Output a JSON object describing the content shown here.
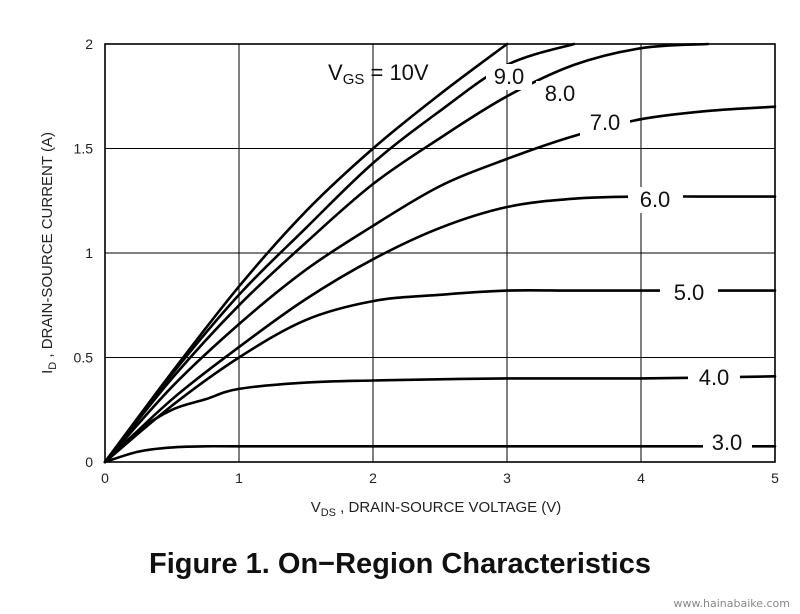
{
  "caption": "Figure 1. On−Region Characteristics",
  "watermark": "www.hainabaike.com",
  "chart_data": {
    "type": "line",
    "title": "",
    "xlabel": "V_DS , DRAIN-SOURCE VOLTAGE (V)",
    "ylabel": "I_D , DRAIN-SOURCE CURRENT (A)",
    "xlim": [
      0,
      5
    ],
    "ylim": [
      0,
      2
    ],
    "xticks": [
      "0",
      "1",
      "2",
      "3",
      "4",
      "5"
    ],
    "yticks": [
      "0",
      "0.5",
      "1",
      "1.5",
      "2"
    ],
    "grid": true,
    "color": "#000000",
    "series": [
      {
        "name": "VGS = 10V",
        "label": "VGS = 10V",
        "x": [
          0,
          0.5,
          1,
          1.5,
          2,
          2.5,
          3
        ],
        "y": [
          0,
          0.43,
          0.84,
          1.2,
          1.5,
          1.76,
          2.0
        ]
      },
      {
        "name": "9.0",
        "label": "9.0",
        "x": [
          0,
          0.5,
          1,
          1.5,
          2,
          2.5,
          3,
          3.5
        ],
        "y": [
          0,
          0.42,
          0.8,
          1.12,
          1.43,
          1.68,
          1.9,
          2.0
        ]
      },
      {
        "name": "8.0",
        "label": "8.0",
        "x": [
          0,
          0.5,
          1,
          1.5,
          2,
          2.5,
          3,
          3.5,
          4,
          4.5
        ],
        "y": [
          0,
          0.4,
          0.75,
          1.05,
          1.33,
          1.55,
          1.75,
          1.9,
          1.98,
          2.0
        ]
      },
      {
        "name": "7.0",
        "label": "7.0",
        "x": [
          0,
          0.5,
          1,
          1.5,
          2,
          2.5,
          3,
          3.5,
          4,
          4.5,
          5
        ],
        "y": [
          0,
          0.36,
          0.66,
          0.92,
          1.13,
          1.32,
          1.45,
          1.56,
          1.64,
          1.68,
          1.7
        ]
      },
      {
        "name": "6.0",
        "label": "6.0",
        "x": [
          0,
          0.5,
          1,
          1.5,
          2,
          2.5,
          3,
          3.5,
          4,
          4.5,
          5
        ],
        "y": [
          0,
          0.3,
          0.55,
          0.78,
          0.97,
          1.12,
          1.22,
          1.26,
          1.27,
          1.27,
          1.27
        ]
      },
      {
        "name": "5.0",
        "label": "5.0",
        "x": [
          0,
          0.5,
          1,
          1.5,
          2,
          2.5,
          3,
          3.5,
          4,
          4.5,
          5
        ],
        "y": [
          0,
          0.27,
          0.5,
          0.68,
          0.77,
          0.8,
          0.82,
          0.82,
          0.82,
          0.82,
          0.82
        ]
      },
      {
        "name": "4.0",
        "label": "4.0",
        "x": [
          0,
          0.25,
          0.5,
          0.75,
          1,
          1.5,
          2,
          3,
          4,
          5
        ],
        "y": [
          0,
          0.15,
          0.25,
          0.3,
          0.35,
          0.38,
          0.39,
          0.4,
          0.4,
          0.41
        ]
      },
      {
        "name": "3.0",
        "label": "3.0",
        "x": [
          0,
          0.25,
          0.5,
          0.75,
          1,
          2,
          3,
          4,
          5
        ],
        "y": [
          0,
          0.05,
          0.07,
          0.075,
          0.075,
          0.075,
          0.075,
          0.075,
          0.075
        ]
      }
    ]
  }
}
